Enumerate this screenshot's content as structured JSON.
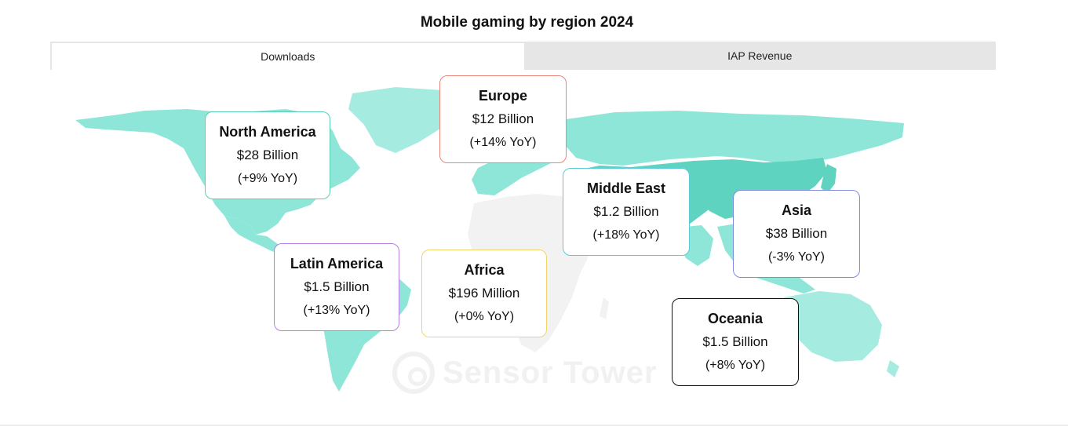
{
  "title": "Mobile gaming by region 2024",
  "tabs": [
    {
      "label": "Downloads",
      "active": true
    },
    {
      "label": "IAP Revenue",
      "active": false
    }
  ],
  "colors": {
    "map_light": "#8ee6d8",
    "map_dark": "#5dd3c0",
    "map_gray": "#f2f2f2",
    "tab_inactive_bg": "#e6e6e6"
  },
  "regions": [
    {
      "id": "north-america",
      "name": "North America",
      "value": "$28 Billion",
      "yoy": "(+9% YoY)",
      "border_color": "#5ccfb2"
    },
    {
      "id": "europe",
      "name": "Europe",
      "value": "$12 Billion",
      "yoy": "(+14% YoY)",
      "border_color": "#e8877a"
    },
    {
      "id": "middle-east",
      "name": "Middle East",
      "value": "$1.2 Billion",
      "yoy": "(+18% YoY)",
      "border_color": "#5ccbd8"
    },
    {
      "id": "asia",
      "name": "Asia",
      "value": "$38 Billion",
      "yoy": "(-3% YoY)",
      "border_color": "#7d8ce0"
    },
    {
      "id": "latin-america",
      "name": "Latin America",
      "value": "$1.5 Billion",
      "yoy": "(+13% YoY)",
      "border_color": "#b77ee6"
    },
    {
      "id": "africa",
      "name": "Africa",
      "value": "$196 Million",
      "yoy": "(+0% YoY)",
      "border_color": "#f2d56a"
    },
    {
      "id": "oceania",
      "name": "Oceania",
      "value": "$1.5 Billion",
      "yoy": "(+8% YoY)",
      "border_color": "#111111"
    }
  ],
  "watermark": "Sensor Tower"
}
